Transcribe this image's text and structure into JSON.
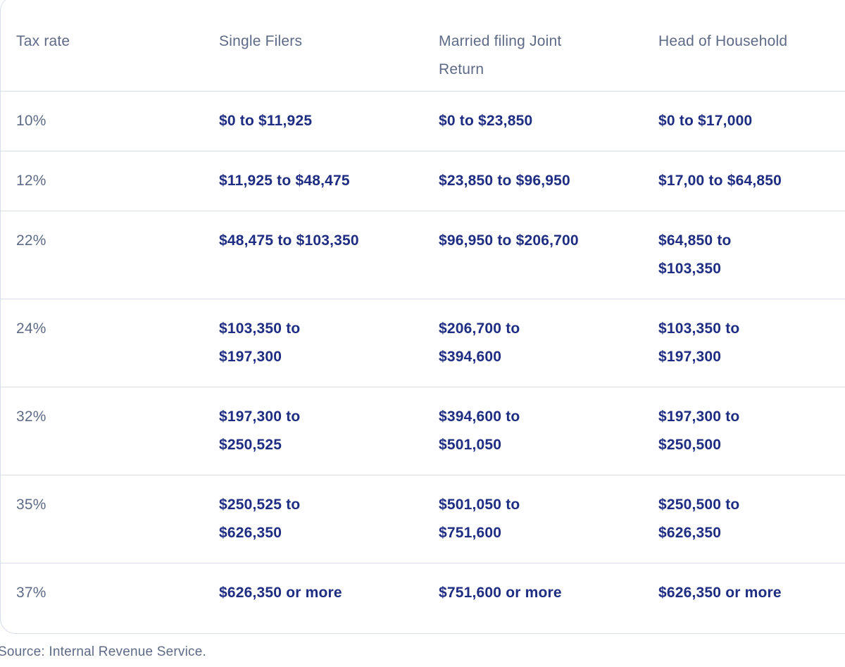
{
  "colors": {
    "value_text": "#1e2d82",
    "header_text": "#5e6a86",
    "divider": "#d9dcea",
    "background": "#ffffff"
  },
  "table": {
    "headers": [
      "Tax rate",
      "Single Filers",
      "Married filing Joint\nReturn",
      "Head of Household"
    ],
    "rows": [
      {
        "rate": "10%",
        "single": "$0 to $11,925",
        "married": "$0 to $23,850",
        "hoh": "$0 to $17,000"
      },
      {
        "rate": "12%",
        "single": "$11,925 to $48,475",
        "married": "$23,850 to $96,950",
        "hoh": "$17,00 to $64,850"
      },
      {
        "rate": "22%",
        "single": "$48,475 to $103,350",
        "married": "$96,950 to $206,700",
        "hoh": "$64,850 to\n$103,350"
      },
      {
        "rate": "24%",
        "single": "$103,350 to\n$197,300",
        "married": "$206,700 to\n$394,600",
        "hoh": "$103,350 to\n$197,300"
      },
      {
        "rate": "32%",
        "single": "$197,300 to\n$250,525",
        "married": "$394,600 to\n$501,050",
        "hoh": "$197,300 to\n$250,500"
      },
      {
        "rate": "35%",
        "single": "$250,525 to\n$626,350",
        "married": "$501,050 to\n$751,600",
        "hoh": "$250,500 to\n$626,350"
      },
      {
        "rate": "37%",
        "single": "$626,350 or more",
        "married": "$751,600 or more",
        "hoh": "$626,350 or more"
      }
    ]
  },
  "source": "Source: Internal Revenue Service.",
  "chart_data": {
    "type": "table",
    "columns": [
      "Tax rate",
      "Single Filers",
      "Married filing Joint Return",
      "Head of Household"
    ],
    "rows": [
      [
        "10%",
        "$0 to $11,925",
        "$0 to $23,850",
        "$0 to $17,000"
      ],
      [
        "12%",
        "$11,925 to $48,475",
        "$23,850 to $96,950",
        "$17,00 to $64,850"
      ],
      [
        "22%",
        "$48,475 to $103,350",
        "$96,950 to $206,700",
        "$64,850 to $103,350"
      ],
      [
        "24%",
        "$103,350 to $197,300",
        "$206,700 to $394,600",
        "$103,350 to $197,300"
      ],
      [
        "32%",
        "$197,300 to $250,525",
        "$394,600 to $501,050",
        "$197,300 to $250,500"
      ],
      [
        "35%",
        "$250,525 to $626,350",
        "$501,050 to $751,600",
        "$250,500 to $626,350"
      ],
      [
        "37%",
        "$626,350 or more",
        "$751,600 or more",
        "$626,350 or more"
      ]
    ],
    "source": "Source: Internal Revenue Service."
  }
}
